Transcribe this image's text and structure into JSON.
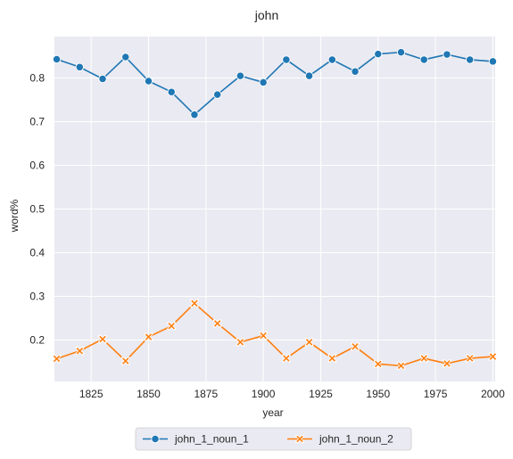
{
  "chart_data": {
    "type": "line",
    "title": "john",
    "xlabel": "year",
    "ylabel": "word%",
    "xlim": [
      1809,
      2001
    ],
    "ylim": [
      0.105,
      0.895
    ],
    "xticks": [
      1825,
      1850,
      1875,
      1900,
      1925,
      1950,
      1975,
      2000
    ],
    "yticks": [
      0.2,
      0.3,
      0.4,
      0.5,
      0.6,
      0.7,
      0.8
    ],
    "grid": true,
    "legend_position": "bottom-center",
    "x": [
      1810,
      1820,
      1830,
      1840,
      1850,
      1860,
      1870,
      1880,
      1890,
      1900,
      1910,
      1920,
      1930,
      1940,
      1950,
      1960,
      1970,
      1980,
      1990,
      2000
    ],
    "series": [
      {
        "name": "john_1_noun_1",
        "marker": "circle",
        "color": "#1f77b4",
        "values": [
          0.843,
          0.825,
          0.798,
          0.848,
          0.793,
          0.768,
          0.716,
          0.762,
          0.805,
          0.79,
          0.842,
          0.805,
          0.842,
          0.815,
          0.855,
          0.859,
          0.842,
          0.854,
          0.842,
          0.838
        ]
      },
      {
        "name": "john_1_noun_2",
        "marker": "x",
        "color": "#ff7f0e",
        "values": [
          0.157,
          0.175,
          0.202,
          0.152,
          0.207,
          0.232,
          0.284,
          0.238,
          0.195,
          0.21,
          0.158,
          0.195,
          0.158,
          0.185,
          0.145,
          0.141,
          0.158,
          0.146,
          0.158,
          0.162
        ]
      }
    ]
  },
  "colors": {
    "plot_background": "#eaeaf2",
    "grid": "#ffffff"
  }
}
